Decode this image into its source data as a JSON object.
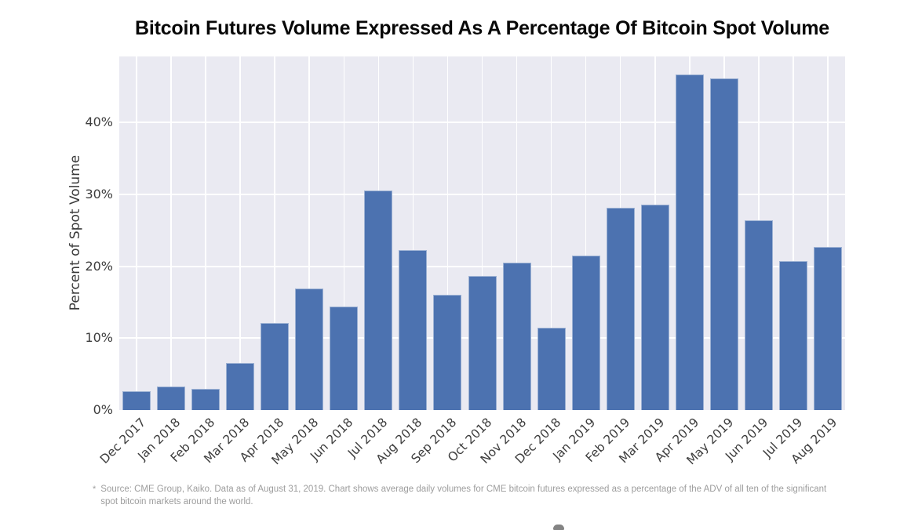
{
  "chart_data": {
    "type": "bar",
    "title": "Bitcoin Futures Volume Expressed As A Percentage Of Bitcoin Spot Volume",
    "categories": [
      "Dec 2017",
      "Jan 2018",
      "Feb 2018",
      "Mar 2018",
      "Apr 2018",
      "May 2018",
      "Jun 2018",
      "Jul 2018",
      "Aug 2018",
      "Sep 2018",
      "Oct 2018",
      "Nov 2018",
      "Dec 2018",
      "Jan 2019",
      "Feb 2019",
      "Mar 2019",
      "Apr 2019",
      "May 2019",
      "Jun 2019",
      "Jul 2019",
      "Aug 2019"
    ],
    "values": [
      2.6,
      3.3,
      2.9,
      6.5,
      12.1,
      16.9,
      14.4,
      30.5,
      22.3,
      16.0,
      18.7,
      20.5,
      11.5,
      21.5,
      28.1,
      28.6,
      46.7,
      46.2,
      26.4,
      20.7,
      22.7
    ],
    "xlabel": "",
    "ylabel": "Percent of Spot Volume",
    "ylim": [
      0,
      49.2
    ],
    "yticks": [
      0,
      10,
      20,
      30,
      40
    ],
    "ytick_suffix": "%",
    "grid": true,
    "legend": false,
    "bar_color": "#4c72b0",
    "plot_background": "#eaeaf2",
    "gridline_color": "#ffffff"
  },
  "footnote": {
    "marker": "*",
    "text": "Source: CME Group, Kaiko. Data as of August 31, 2019. Chart shows average daily volumes for CME bitcoin futures expressed as a percentage of the ADV of all ten of the significant spot bitcoin markets around the world."
  }
}
